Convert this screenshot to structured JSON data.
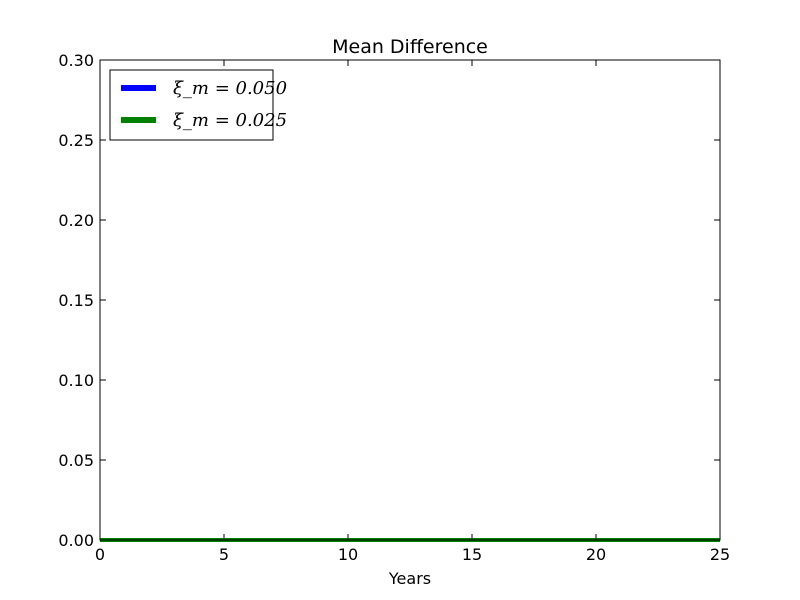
{
  "chart_data": {
    "type": "line",
    "title": "Mean Difference",
    "xlabel": "Years",
    "ylabel": "",
    "xlim": [
      0,
      25
    ],
    "ylim": [
      0,
      0.3
    ],
    "x_ticks": [
      "0",
      "5",
      "10",
      "15",
      "20",
      "25"
    ],
    "y_ticks": [
      "0.00",
      "0.05",
      "0.10",
      "0.15",
      "0.20",
      "0.25",
      "0.30"
    ],
    "grid": false,
    "legend_position": "top-left",
    "series": [
      {
        "name": "ξ_m = 0.050",
        "color": "#0000ff",
        "x": [
          0,
          25
        ],
        "y": [
          0.0,
          0.0
        ]
      },
      {
        "name": "ξ_m = 0.025",
        "color": "#008000",
        "x": [
          0,
          25
        ],
        "y": [
          0.0,
          0.0
        ]
      }
    ]
  }
}
